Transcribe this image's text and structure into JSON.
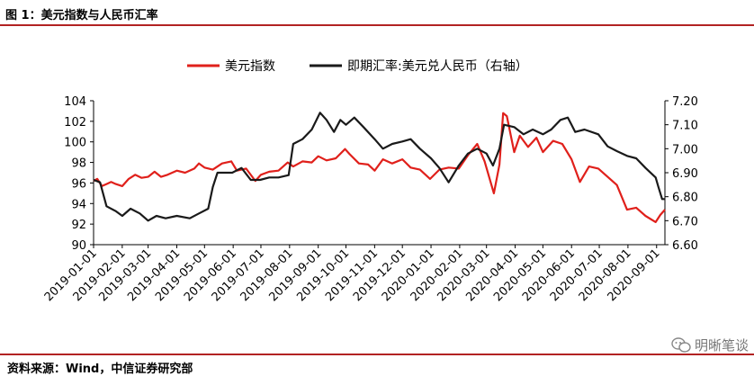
{
  "figure": {
    "title": "图 1：美元指数与人民币汇率",
    "source": "资料来源：Wind，中信证券研究部",
    "watermark": "明晰笔谈"
  },
  "chart_data": {
    "type": "line",
    "title": "",
    "legend_position": "top-center",
    "left_axis": {
      "ylim": [
        90,
        104
      ],
      "ticks": [
        "90",
        "92",
        "94",
        "96",
        "98",
        "100",
        "102",
        "104"
      ]
    },
    "right_axis": {
      "ylim": [
        6.6,
        7.2
      ],
      "ticks": [
        "6.60",
        "6.70",
        "6.80",
        "6.90",
        "7.00",
        "7.10",
        "7.20"
      ]
    },
    "x_ticks": [
      "2019-01-01",
      "2019-02-01",
      "2019-03-01",
      "2019-04-01",
      "2019-05-01",
      "2019-06-01",
      "2019-07-01",
      "2019-08-01",
      "2019-09-01",
      "2019-10-01",
      "2019-11-01",
      "2019-12-01",
      "2020-01-01",
      "2020-02-01",
      "2020-03-01",
      "2020-04-01",
      "2020-05-01",
      "2020-06-01",
      "2020-07-01",
      "2020-08-01",
      "2020-09-01"
    ],
    "x_range": [
      "2019-01-01",
      "2020-09-10"
    ],
    "series": [
      {
        "name": "美元指数",
        "axis": "left",
        "color": "#e0201b",
        "points": [
          [
            "2019-01-01",
            96.2
          ],
          [
            "2019-01-05",
            96.4
          ],
          [
            "2019-01-10",
            95.7
          ],
          [
            "2019-01-15",
            95.9
          ],
          [
            "2019-01-20",
            96.1
          ],
          [
            "2019-01-25",
            95.9
          ],
          [
            "2019-02-01",
            95.7
          ],
          [
            "2019-02-08",
            96.4
          ],
          [
            "2019-02-15",
            96.8
          ],
          [
            "2019-02-22",
            96.5
          ],
          [
            "2019-03-01",
            96.6
          ],
          [
            "2019-03-08",
            97.1
          ],
          [
            "2019-03-15",
            96.6
          ],
          [
            "2019-03-22",
            96.8
          ],
          [
            "2019-04-01",
            97.2
          ],
          [
            "2019-04-10",
            97.0
          ],
          [
            "2019-04-20",
            97.4
          ],
          [
            "2019-04-25",
            97.9
          ],
          [
            "2019-05-01",
            97.5
          ],
          [
            "2019-05-10",
            97.3
          ],
          [
            "2019-05-20",
            97.9
          ],
          [
            "2019-05-30",
            98.1
          ],
          [
            "2019-06-05",
            97.2
          ],
          [
            "2019-06-15",
            97.4
          ],
          [
            "2019-06-25",
            96.2
          ],
          [
            "2019-07-01",
            96.8
          ],
          [
            "2019-07-10",
            97.1
          ],
          [
            "2019-07-20",
            97.2
          ],
          [
            "2019-07-30",
            98.0
          ],
          [
            "2019-08-05",
            97.6
          ],
          [
            "2019-08-15",
            98.1
          ],
          [
            "2019-08-25",
            98.0
          ],
          [
            "2019-09-01",
            98.6
          ],
          [
            "2019-09-10",
            98.2
          ],
          [
            "2019-09-20",
            98.4
          ],
          [
            "2019-09-30",
            99.3
          ],
          [
            "2019-10-05",
            98.8
          ],
          [
            "2019-10-15",
            97.9
          ],
          [
            "2019-10-25",
            97.8
          ],
          [
            "2019-11-01",
            97.2
          ],
          [
            "2019-11-10",
            98.3
          ],
          [
            "2019-11-20",
            97.9
          ],
          [
            "2019-12-01",
            98.3
          ],
          [
            "2019-12-10",
            97.5
          ],
          [
            "2019-12-20",
            97.3
          ],
          [
            "2019-12-31",
            96.4
          ],
          [
            "2020-01-10",
            97.3
          ],
          [
            "2020-01-20",
            97.5
          ],
          [
            "2020-01-31",
            97.4
          ],
          [
            "2020-02-10",
            98.7
          ],
          [
            "2020-02-20",
            99.8
          ],
          [
            "2020-02-28",
            98.1
          ],
          [
            "2020-03-09",
            95.0
          ],
          [
            "2020-03-15",
            97.8
          ],
          [
            "2020-03-19",
            102.8
          ],
          [
            "2020-03-23",
            102.5
          ],
          [
            "2020-03-31",
            99.0
          ],
          [
            "2020-04-06",
            100.6
          ],
          [
            "2020-04-15",
            99.5
          ],
          [
            "2020-04-24",
            100.4
          ],
          [
            "2020-05-01",
            99.0
          ],
          [
            "2020-05-12",
            100.1
          ],
          [
            "2020-05-22",
            99.8
          ],
          [
            "2020-06-01",
            98.3
          ],
          [
            "2020-06-10",
            96.1
          ],
          [
            "2020-06-20",
            97.6
          ],
          [
            "2020-06-30",
            97.4
          ],
          [
            "2020-07-10",
            96.6
          ],
          [
            "2020-07-20",
            95.8
          ],
          [
            "2020-07-31",
            93.4
          ],
          [
            "2020-08-10",
            93.6
          ],
          [
            "2020-08-20",
            92.8
          ],
          [
            "2020-08-31",
            92.2
          ],
          [
            "2020-09-05",
            92.9
          ],
          [
            "2020-09-10",
            93.4
          ]
        ]
      },
      {
        "name": "即期汇率:美元兑人民币（右轴）",
        "axis": "right",
        "color": "#1a1a1a",
        "points": [
          [
            "2019-01-01",
            6.87
          ],
          [
            "2019-01-08",
            6.86
          ],
          [
            "2019-01-15",
            6.76
          ],
          [
            "2019-01-25",
            6.74
          ],
          [
            "2019-02-01",
            6.72
          ],
          [
            "2019-02-10",
            6.75
          ],
          [
            "2019-02-20",
            6.73
          ],
          [
            "2019-03-01",
            6.7
          ],
          [
            "2019-03-10",
            6.72
          ],
          [
            "2019-03-20",
            6.71
          ],
          [
            "2019-04-01",
            6.72
          ],
          [
            "2019-04-15",
            6.71
          ],
          [
            "2019-04-25",
            6.73
          ],
          [
            "2019-05-05",
            6.75
          ],
          [
            "2019-05-10",
            6.84
          ],
          [
            "2019-05-15",
            6.9
          ],
          [
            "2019-05-31",
            6.9
          ],
          [
            "2019-06-10",
            6.92
          ],
          [
            "2019-06-20",
            6.87
          ],
          [
            "2019-06-30",
            6.87
          ],
          [
            "2019-07-10",
            6.88
          ],
          [
            "2019-07-20",
            6.88
          ],
          [
            "2019-07-31",
            6.89
          ],
          [
            "2019-08-05",
            7.02
          ],
          [
            "2019-08-15",
            7.04
          ],
          [
            "2019-08-25",
            7.08
          ],
          [
            "2019-09-03",
            7.15
          ],
          [
            "2019-09-10",
            7.12
          ],
          [
            "2019-09-18",
            7.07
          ],
          [
            "2019-09-25",
            7.12
          ],
          [
            "2019-10-01",
            7.1
          ],
          [
            "2019-10-10",
            7.13
          ],
          [
            "2019-10-20",
            7.09
          ],
          [
            "2019-11-01",
            7.04
          ],
          [
            "2019-11-10",
            7.0
          ],
          [
            "2019-11-20",
            7.02
          ],
          [
            "2019-12-01",
            7.03
          ],
          [
            "2019-12-10",
            7.04
          ],
          [
            "2019-12-20",
            7.0
          ],
          [
            "2020-01-01",
            6.96
          ],
          [
            "2020-01-10",
            6.92
          ],
          [
            "2020-01-20",
            6.86
          ],
          [
            "2020-01-31",
            6.93
          ],
          [
            "2020-02-10",
            6.98
          ],
          [
            "2020-02-20",
            7.0
          ],
          [
            "2020-03-01",
            6.98
          ],
          [
            "2020-03-08",
            6.93
          ],
          [
            "2020-03-15",
            7.0
          ],
          [
            "2020-03-20",
            7.1
          ],
          [
            "2020-03-31",
            7.09
          ],
          [
            "2020-04-10",
            7.06
          ],
          [
            "2020-04-20",
            7.08
          ],
          [
            "2020-05-01",
            7.06
          ],
          [
            "2020-05-10",
            7.08
          ],
          [
            "2020-05-20",
            7.12
          ],
          [
            "2020-05-28",
            7.13
          ],
          [
            "2020-06-05",
            7.07
          ],
          [
            "2020-06-15",
            7.08
          ],
          [
            "2020-06-30",
            7.06
          ],
          [
            "2020-07-10",
            7.01
          ],
          [
            "2020-07-20",
            6.99
          ],
          [
            "2020-07-31",
            6.97
          ],
          [
            "2020-08-10",
            6.96
          ],
          [
            "2020-08-20",
            6.92
          ],
          [
            "2020-08-31",
            6.88
          ],
          [
            "2020-09-03",
            6.84
          ],
          [
            "2020-09-07",
            6.79
          ],
          [
            "2020-09-10",
            6.79
          ]
        ]
      }
    ]
  }
}
